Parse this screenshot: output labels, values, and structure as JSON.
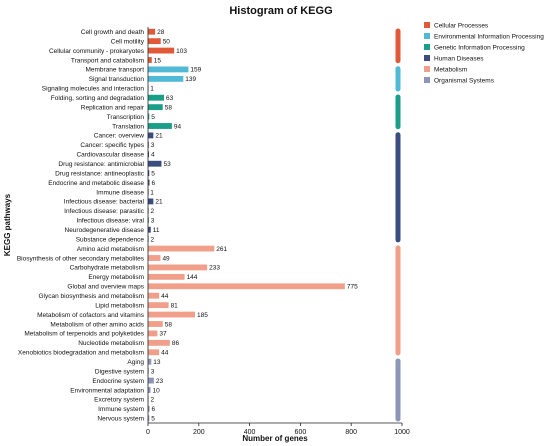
{
  "chart_data": {
    "type": "bar",
    "orientation": "horizontal",
    "title": "Histogram of KEGG",
    "xlabel": "Number of genes",
    "ylabel": "KEGG pathways",
    "xlim": [
      0,
      1000
    ],
    "xticks": [
      0,
      200,
      400,
      600,
      800,
      1000
    ],
    "groups": [
      {
        "name": "Cellular Processes",
        "color": "#e05a3a"
      },
      {
        "name": "Environmental Information Processing",
        "color": "#4fb9d6"
      },
      {
        "name": "Genetic Information Processing",
        "color": "#1a9e8a"
      },
      {
        "name": "Human Diseases",
        "color": "#3b4c80"
      },
      {
        "name": "Metabolism",
        "color": "#f0a08a"
      },
      {
        "name": "Organismal Systems",
        "color": "#8c96b6"
      }
    ],
    "categories": [
      "Cell growth and death",
      "Cell motility",
      "Cellular community - prokaryotes",
      "Transport and catabolism",
      "Membrane transport",
      "Signal transduction",
      "Signaling molecules and interaction",
      "Folding, sorting and degradation",
      "Replication and repair",
      "Transcription",
      "Translation",
      "Cancer: overview",
      "Cancer: specific types",
      "Cardiovascular disease",
      "Drug resistance: antimicrobial",
      "Drug resistance: antineoplastic",
      "Endocrine and metabolic disease",
      "Immune disease",
      "Infectious disease: bacterial",
      "Infectious disease: parasitic",
      "Infectious disease: viral",
      "Neurodegenerative disease",
      "Substance dependence",
      "Amino acid metabolism",
      "Biosynthesis of other secondary metabolites",
      "Carbohydrate metabolism",
      "Energy metabolism",
      "Global and overview maps",
      "Glycan biosynthesis and metabolism",
      "Lipid metabolism",
      "Metabolism of cofactors and vitamins",
      "Metabolism of other amino acids",
      "Metabolism of terpenoids and polyketides",
      "Nucleotide metabolism",
      "Xenobiotics biodegradation and metabolism",
      "Aging",
      "Digestive system",
      "Endocrine system",
      "Environmental adaptation",
      "Excretory system",
      "Immune system",
      "Nervous system"
    ],
    "values": [
      28,
      50,
      103,
      15,
      159,
      139,
      1,
      63,
      58,
      5,
      94,
      21,
      3,
      4,
      53,
      5,
      6,
      1,
      21,
      2,
      3,
      11,
      2,
      261,
      49,
      233,
      144,
      775,
      44,
      81,
      185,
      58,
      37,
      86,
      44,
      13,
      3,
      23,
      10,
      2,
      6,
      5
    ],
    "group_index": [
      0,
      0,
      0,
      0,
      1,
      1,
      1,
      2,
      2,
      2,
      2,
      3,
      3,
      3,
      3,
      3,
      3,
      3,
      3,
      3,
      3,
      3,
      3,
      4,
      4,
      4,
      4,
      4,
      4,
      4,
      4,
      4,
      4,
      4,
      4,
      5,
      5,
      5,
      5,
      5,
      5,
      5
    ],
    "legend_position": "top-right"
  }
}
